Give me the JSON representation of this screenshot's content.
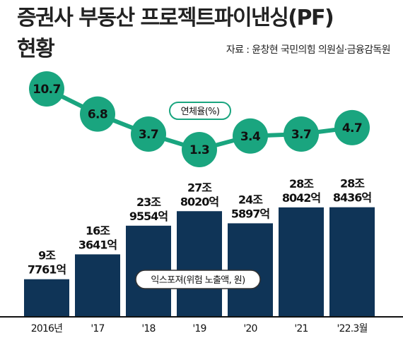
{
  "title_line1": "증권사 부동산 프로젝트파이낸싱(PF)",
  "title_line2": "현황",
  "source": "자료 : 윤창현 국민의힘 의원실·금융감독원",
  "colors": {
    "bar": "#0f3457",
    "dot": "#1aa57f",
    "line": "#1aa57f"
  },
  "chart_data": [
    {
      "type": "bar",
      "title": "익스포져(위험 노출액, 원)",
      "categories": [
        "2016년",
        "'17",
        "'18",
        "'19",
        "'20",
        "'21",
        "'22.3월"
      ],
      "value_labels": [
        [
          "9조",
          "7761억"
        ],
        [
          "16조",
          "3641억"
        ],
        [
          "23조",
          "9554억"
        ],
        [
          "27조",
          "8020억"
        ],
        [
          "24조",
          "5897억"
        ],
        [
          "28조",
          "8042억"
        ],
        [
          "28조",
          "8436억"
        ]
      ],
      "values": [
        9.7761,
        16.3641,
        23.9554,
        27.802,
        24.5897,
        28.8042,
        28.8436
      ],
      "unit": "조 원"
    },
    {
      "type": "line",
      "title": "연체율(%)",
      "categories": [
        "2016년",
        "'17",
        "'18",
        "'19",
        "'20",
        "'21",
        "'22.3월"
      ],
      "values": [
        10.7,
        6.8,
        3.7,
        1.3,
        3.4,
        3.7,
        4.7
      ],
      "value_labels": [
        "10.7",
        "6.8",
        "3.7",
        "1.3",
        "3.4",
        "3.7",
        "4.7"
      ]
    }
  ]
}
